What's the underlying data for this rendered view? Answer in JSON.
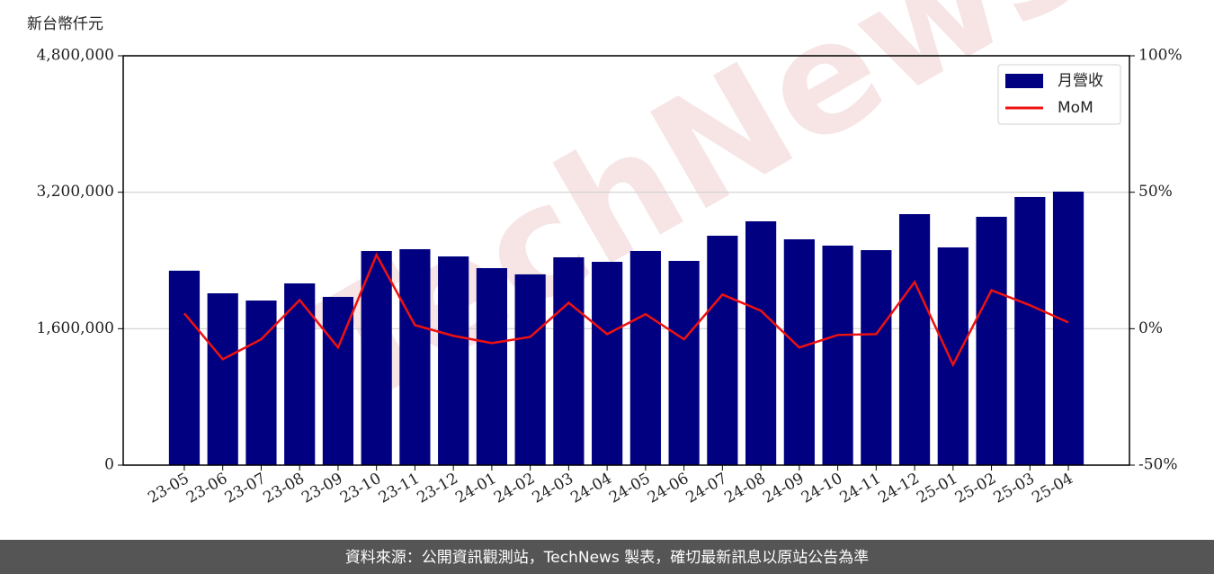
{
  "chart_data": {
    "type": "bar",
    "y_label": "新台幣仟元",
    "watermark": "TechNews",
    "footer": "資料來源：公開資訊觀測站，TechNews 製表，確切最新訊息以原站公告為準",
    "categories": [
      "23-05",
      "23-06",
      "23-07",
      "23-08",
      "23-09",
      "23-10",
      "23-11",
      "23-12",
      "24-01",
      "24-02",
      "24-03",
      "24-04",
      "24-05",
      "24-06",
      "24-07",
      "24-08",
      "24-09",
      "24-10",
      "24-11",
      "24-12",
      "25-01",
      "25-02",
      "25-03",
      "25-04"
    ],
    "series": [
      {
        "name": "月營收",
        "type": "bar",
        "color": "#000080",
        "values": [
          2280000,
          2015000,
          1930000,
          2131000,
          1973000,
          2511000,
          2532000,
          2447000,
          2310000,
          2237000,
          2437000,
          2384000,
          2511000,
          2395000,
          2690000,
          2859000,
          2648000,
          2574000,
          2521000,
          2943000,
          2553000,
          2912000,
          3144000,
          3207000
        ]
      },
      {
        "name": "MoM",
        "type": "line",
        "axis": "y2",
        "color": "#ee1111",
        "values": [
          5.6,
          -11.2,
          -3.9,
          10.5,
          -6.9,
          27.0,
          1.3,
          -2.6,
          -5.3,
          -3.0,
          9.5,
          -2.0,
          5.3,
          -3.9,
          12.5,
          6.6,
          -6.9,
          -2.3,
          -2.0,
          17.1,
          -13.2,
          14.1,
          8.6,
          2.3
        ]
      }
    ],
    "ylim": [
      0,
      4800000
    ],
    "yticks": [
      0,
      {
        "value": 1600000,
        "label": "1,600,000"
      },
      {
        "value": 3200000,
        "label": "3,200,000"
      },
      {
        "value": 4800000,
        "label": "4,800,000"
      }
    ],
    "y2lim": [
      -50,
      100
    ],
    "y2ticks": [
      {
        "value": -50,
        "label": "-50%"
      },
      {
        "value": 0,
        "label": "0%"
      },
      {
        "value": 50,
        "label": "50%"
      },
      {
        "value": 100,
        "label": "100%"
      }
    ],
    "grid": true,
    "legend": "upper right"
  }
}
